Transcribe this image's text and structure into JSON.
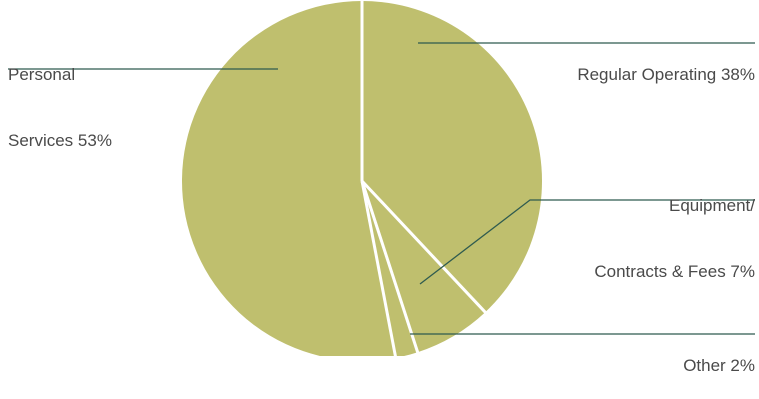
{
  "chart_data": {
    "type": "pie",
    "title": "",
    "slices": [
      {
        "label": "Regular Operating",
        "value": 38,
        "value_label": "38%"
      },
      {
        "label": "Equipment/ Contracts & Fees",
        "value": 7,
        "value_label": "7%"
      },
      {
        "label": "Other",
        "value": 2,
        "value_label": "2%"
      },
      {
        "label": "Personal Services",
        "value": 53,
        "value_label": "53%"
      }
    ],
    "labels": {
      "personal": {
        "line1": "Personal",
        "line2": "Services 53%"
      },
      "regular": {
        "line1": "Regular Operating 38%"
      },
      "equipment": {
        "line1": "Equipment/",
        "line2": "Contracts & Fees 7%"
      },
      "other": {
        "line1": "Other 2%"
      }
    },
    "colors": {
      "slice": "#bfbf6e",
      "separator": "#ffffff",
      "leader": "#2f5b4f",
      "text": "#4a4a4a"
    },
    "start_angle": "top (12 o'clock)",
    "direction": "clockwise",
    "legend": "none"
  }
}
